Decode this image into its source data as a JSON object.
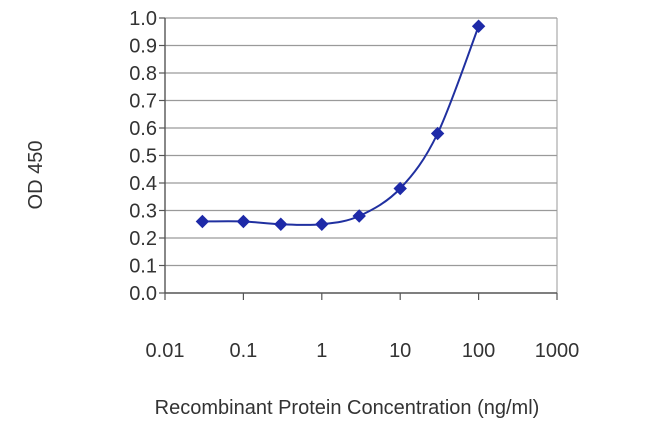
{
  "chart_data": {
    "type": "line",
    "title": "",
    "xlabel": "Recombinant Protein Concentration (ng/ml)",
    "ylabel": "OD 450",
    "x_scale": "log",
    "xlim": [
      0.01,
      1000
    ],
    "ylim": [
      0,
      1
    ],
    "x_ticks": [
      "0.01",
      "0.1",
      "1",
      "10",
      "100",
      "1000"
    ],
    "y_ticks": [
      "0.0",
      "0.1",
      "0.2",
      "0.3",
      "0.4",
      "0.5",
      "0.6",
      "0.7",
      "0.8",
      "0.9",
      "1.0"
    ],
    "grid": "horizontal",
    "legend": "none",
    "series": [
      {
        "x": [
          0.03,
          0.1,
          0.3,
          1,
          3,
          10,
          30,
          100
        ],
        "y": [
          0.26,
          0.26,
          0.25,
          0.25,
          0.28,
          0.38,
          0.58,
          0.97
        ]
      }
    ],
    "colors": {
      "line": "#2030a0",
      "marker": "#1e2aa8",
      "grid": "#9a9a9a",
      "axis": "#555555"
    }
  }
}
